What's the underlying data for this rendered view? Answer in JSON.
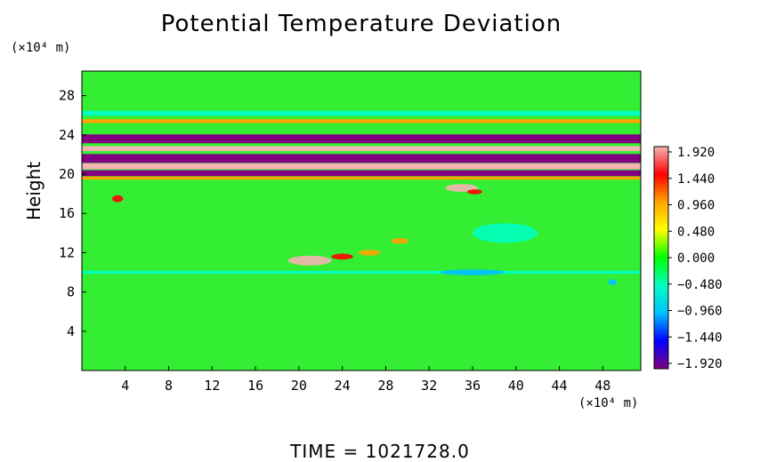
{
  "chart_data": {
    "type": "heatmap",
    "title": "Potential Temperature Deviation",
    "xlabel": "",
    "ylabel": "Height",
    "x_unit": "(×10⁴ m)",
    "y_unit": "(×10⁴ m)",
    "footer": "TIME  =  1021728.0",
    "xlim": [
      0,
      51.5
    ],
    "ylim": [
      0,
      30.5
    ],
    "x_ticks": [
      4,
      8,
      12,
      16,
      20,
      24,
      28,
      32,
      36,
      40,
      44,
      48
    ],
    "x_tick_labels": [
      "4",
      "8",
      "12",
      "16",
      "20",
      "24",
      "28",
      "32",
      "36",
      "40",
      "44",
      "48"
    ],
    "y_ticks": [
      4,
      8,
      12,
      16,
      20,
      24,
      28
    ],
    "y_tick_labels": [
      "4",
      "8",
      "12",
      "16",
      "20",
      "24",
      "28"
    ],
    "colorbar": {
      "min": -1.92,
      "max": 1.92,
      "ticks": [
        1.92,
        1.44,
        0.96,
        0.48,
        0.0,
        -0.48,
        -0.96,
        -1.44,
        -1.92
      ],
      "tick_labels": [
        "1.920",
        "1.440",
        "0.960",
        "0.480",
        "0.000",
        "−0.480",
        "−0.960",
        "−1.440",
        "−1.920"
      ],
      "colors": [
        "#f4b4b4",
        "#ff0000",
        "#ffa500",
        "#ffff00",
        "#00ff00",
        "#00ffc0",
        "#00c0ff",
        "#0000ff",
        "#800080"
      ]
    },
    "background_value": 0.1,
    "features": [
      {
        "kind": "band",
        "x": [
          0,
          51.5
        ],
        "y_center": 23.6,
        "thickness": 0.9,
        "value": -1.9
      },
      {
        "kind": "band",
        "x": [
          0,
          51.5
        ],
        "y_center": 22.6,
        "thickness": 0.5,
        "value": 1.9
      },
      {
        "kind": "band",
        "x": [
          0,
          51.5
        ],
        "y_center": 21.6,
        "thickness": 0.9,
        "value": -1.9
      },
      {
        "kind": "band",
        "x": [
          0,
          51.5
        ],
        "y_center": 20.8,
        "thickness": 0.6,
        "value": 1.9
      },
      {
        "kind": "band",
        "x": [
          0,
          51.5
        ],
        "y_center": 20.1,
        "thickness": 0.6,
        "value": -1.9
      },
      {
        "kind": "band",
        "x": [
          0,
          51.5
        ],
        "y_center": 19.6,
        "thickness": 0.3,
        "value": 1.0
      },
      {
        "kind": "band",
        "x": [
          0,
          51.5
        ],
        "y_center": 25.4,
        "thickness": 0.4,
        "value": 1.2
      },
      {
        "kind": "band",
        "x": [
          0,
          51.5
        ],
        "y_center": 26.2,
        "thickness": 0.5,
        "value": -0.6
      },
      {
        "kind": "band",
        "x": [
          0,
          51.5
        ],
        "y_center": 10.0,
        "thickness": 0.3,
        "value": -0.3
      },
      {
        "kind": "patch",
        "x": 19,
        "y": 11.2,
        "w": 4,
        "h": 1.0,
        "value": 1.9
      },
      {
        "kind": "patch",
        "x": 23,
        "y": 11.6,
        "w": 2,
        "h": 0.6,
        "value": 1.5
      },
      {
        "kind": "patch",
        "x": 25.5,
        "y": 12.0,
        "w": 2,
        "h": 0.6,
        "value": 1.2
      },
      {
        "kind": "patch",
        "x": 28.5,
        "y": 13.2,
        "w": 1.6,
        "h": 0.6,
        "value": 1.2
      },
      {
        "kind": "patch",
        "x": 33.5,
        "y": 18.6,
        "w": 3,
        "h": 0.8,
        "value": 1.9
      },
      {
        "kind": "patch",
        "x": 35.5,
        "y": 18.2,
        "w": 1.4,
        "h": 0.5,
        "value": 1.5
      },
      {
        "kind": "patch",
        "x": 2.8,
        "y": 17.5,
        "w": 1.0,
        "h": 0.7,
        "value": 1.4
      },
      {
        "kind": "patch",
        "x": 36,
        "y": 14.0,
        "w": 6,
        "h": 2.0,
        "value": -0.5
      },
      {
        "kind": "patch",
        "x": 33,
        "y": 10.0,
        "w": 6,
        "h": 0.6,
        "value": -0.9
      },
      {
        "kind": "patch",
        "x": 48.5,
        "y": 9.0,
        "w": 0.8,
        "h": 0.6,
        "value": -1.0
      }
    ]
  }
}
